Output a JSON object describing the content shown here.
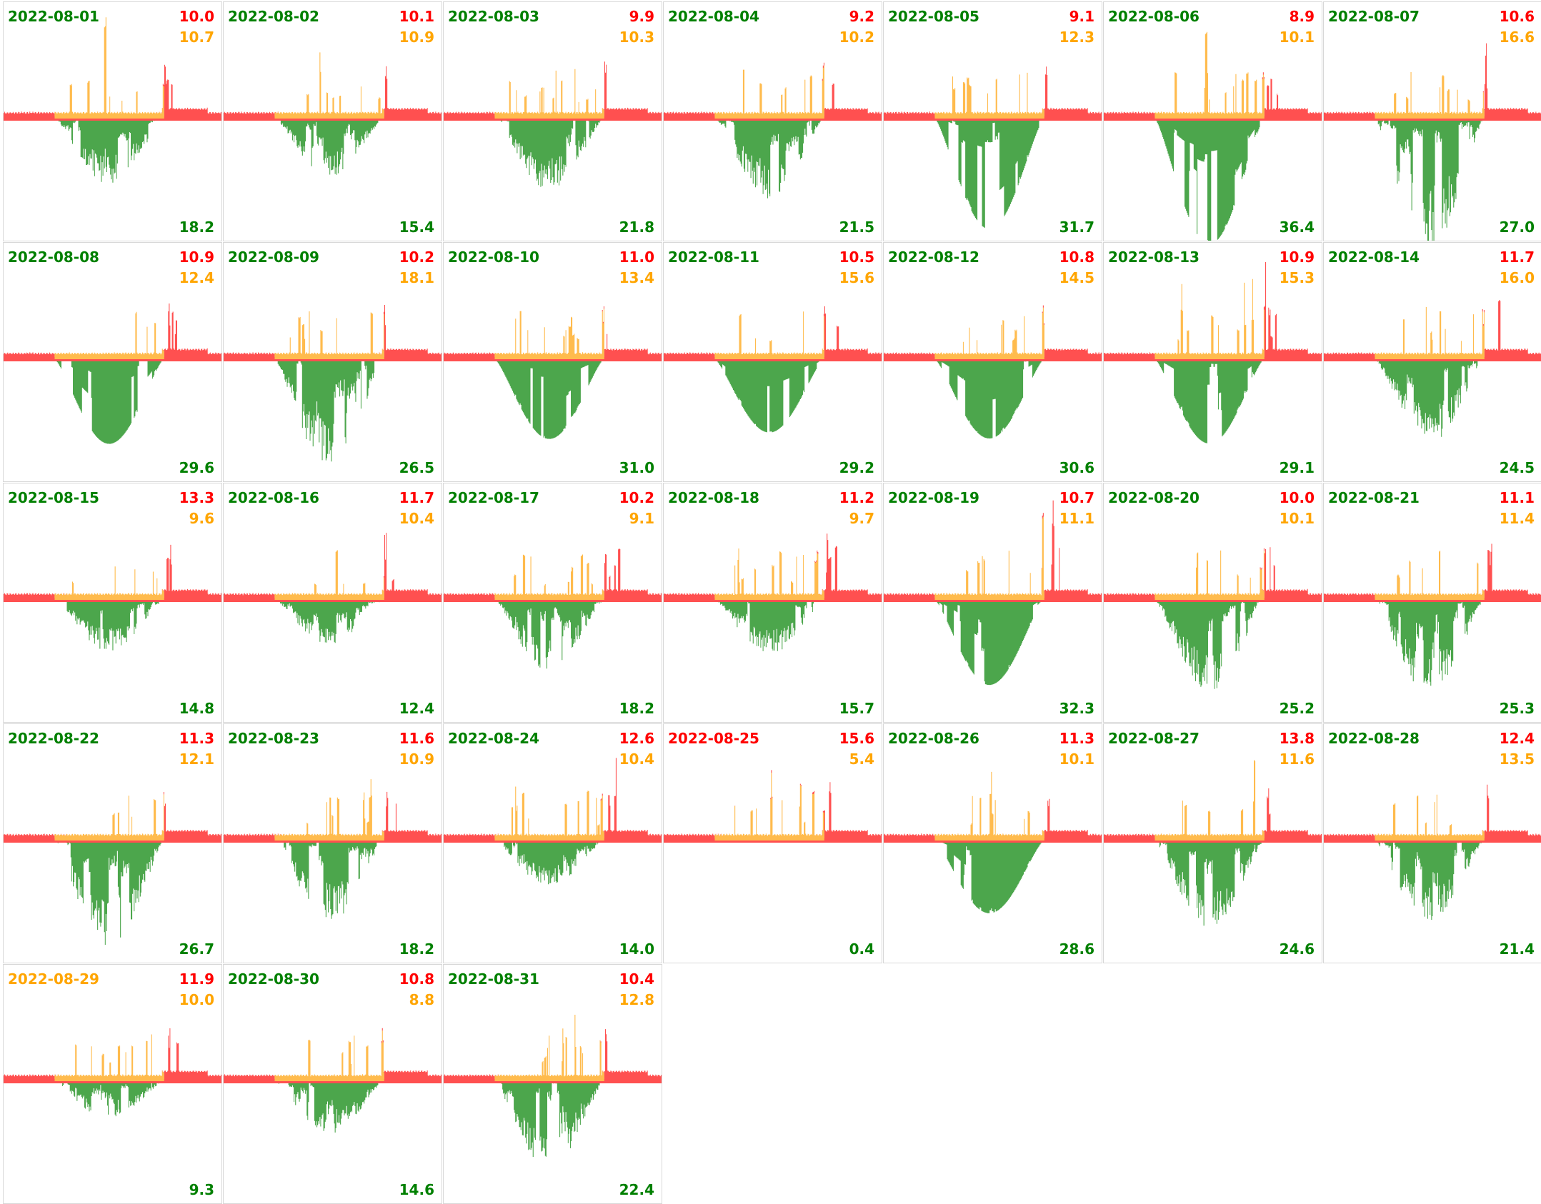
{
  "colors": {
    "import": "#ff5050",
    "self": "#ffbb4d",
    "export": "#4ca64c",
    "good": "#008000",
    "warn": "#ffa500",
    "bad": "#ff0000"
  },
  "chart_data": [
    {
      "type": "area",
      "date": "2022-08-01",
      "import_kwh": "10.0",
      "self_kwh": "10.7",
      "export_kwh": "18.2",
      "date_color": "good"
    },
    {
      "type": "area",
      "date": "2022-08-02",
      "import_kwh": "10.1",
      "self_kwh": "10.9",
      "export_kwh": "15.4",
      "date_color": "good"
    },
    {
      "type": "area",
      "date": "2022-08-03",
      "import_kwh": "9.9",
      "self_kwh": "10.3",
      "export_kwh": "21.8",
      "date_color": "good"
    },
    {
      "type": "area",
      "date": "2022-08-04",
      "import_kwh": "9.2",
      "self_kwh": "10.2",
      "export_kwh": "21.5",
      "date_color": "good"
    },
    {
      "type": "area",
      "date": "2022-08-05",
      "import_kwh": "9.1",
      "self_kwh": "12.3",
      "export_kwh": "31.7",
      "date_color": "good"
    },
    {
      "type": "area",
      "date": "2022-08-06",
      "import_kwh": "8.9",
      "self_kwh": "10.1",
      "export_kwh": "36.4",
      "date_color": "good"
    },
    {
      "type": "area",
      "date": "2022-08-07",
      "import_kwh": "10.6",
      "self_kwh": "16.6",
      "export_kwh": "27.0",
      "date_color": "good"
    },
    {
      "type": "area",
      "date": "2022-08-08",
      "import_kwh": "10.9",
      "self_kwh": "12.4",
      "export_kwh": "29.6",
      "date_color": "good"
    },
    {
      "type": "area",
      "date": "2022-08-09",
      "import_kwh": "10.2",
      "self_kwh": "18.1",
      "export_kwh": "26.5",
      "date_color": "good"
    },
    {
      "type": "area",
      "date": "2022-08-10",
      "import_kwh": "11.0",
      "self_kwh": "13.4",
      "export_kwh": "31.0",
      "date_color": "good"
    },
    {
      "type": "area",
      "date": "2022-08-11",
      "import_kwh": "10.5",
      "self_kwh": "15.6",
      "export_kwh": "29.2",
      "date_color": "good"
    },
    {
      "type": "area",
      "date": "2022-08-12",
      "import_kwh": "10.8",
      "self_kwh": "14.5",
      "export_kwh": "30.6",
      "date_color": "good"
    },
    {
      "type": "area",
      "date": "2022-08-13",
      "import_kwh": "10.9",
      "self_kwh": "15.3",
      "export_kwh": "29.1",
      "date_color": "good"
    },
    {
      "type": "area",
      "date": "2022-08-14",
      "import_kwh": "11.7",
      "self_kwh": "16.0",
      "export_kwh": "24.5",
      "date_color": "good"
    },
    {
      "type": "area",
      "date": "2022-08-15",
      "import_kwh": "13.3",
      "self_kwh": "9.6",
      "export_kwh": "14.8",
      "date_color": "good"
    },
    {
      "type": "area",
      "date": "2022-08-16",
      "import_kwh": "11.7",
      "self_kwh": "10.4",
      "export_kwh": "12.4",
      "date_color": "good"
    },
    {
      "type": "area",
      "date": "2022-08-17",
      "import_kwh": "10.2",
      "self_kwh": "9.1",
      "export_kwh": "18.2",
      "date_color": "good"
    },
    {
      "type": "area",
      "date": "2022-08-18",
      "import_kwh": "11.2",
      "self_kwh": "9.7",
      "export_kwh": "15.7",
      "date_color": "good"
    },
    {
      "type": "area",
      "date": "2022-08-19",
      "import_kwh": "10.7",
      "self_kwh": "11.1",
      "export_kwh": "32.3",
      "date_color": "good"
    },
    {
      "type": "area",
      "date": "2022-08-20",
      "import_kwh": "10.0",
      "self_kwh": "10.1",
      "export_kwh": "25.2",
      "date_color": "good"
    },
    {
      "type": "area",
      "date": "2022-08-21",
      "import_kwh": "11.1",
      "self_kwh": "11.4",
      "export_kwh": "25.3",
      "date_color": "good"
    },
    {
      "type": "area",
      "date": "2022-08-22",
      "import_kwh": "11.3",
      "self_kwh": "12.1",
      "export_kwh": "26.7",
      "date_color": "good"
    },
    {
      "type": "area",
      "date": "2022-08-23",
      "import_kwh": "11.6",
      "self_kwh": "10.9",
      "export_kwh": "18.2",
      "date_color": "good"
    },
    {
      "type": "area",
      "date": "2022-08-24",
      "import_kwh": "12.6",
      "self_kwh": "10.4",
      "export_kwh": "14.0",
      "date_color": "good"
    },
    {
      "type": "area",
      "date": "2022-08-25",
      "import_kwh": "15.6",
      "self_kwh": "5.4",
      "export_kwh": "0.4",
      "date_color": "bad"
    },
    {
      "type": "area",
      "date": "2022-08-26",
      "import_kwh": "11.3",
      "self_kwh": "10.1",
      "export_kwh": "28.6",
      "date_color": "good"
    },
    {
      "type": "area",
      "date": "2022-08-27",
      "import_kwh": "13.8",
      "self_kwh": "11.6",
      "export_kwh": "24.6",
      "date_color": "good"
    },
    {
      "type": "area",
      "date": "2022-08-28",
      "import_kwh": "12.4",
      "self_kwh": "13.5",
      "export_kwh": "21.4",
      "date_color": "good"
    },
    {
      "type": "area",
      "date": "2022-08-29",
      "import_kwh": "11.9",
      "self_kwh": "10.0",
      "export_kwh": "9.3",
      "date_color": "warn"
    },
    {
      "type": "area",
      "date": "2022-08-30",
      "import_kwh": "10.8",
      "self_kwh": "8.8",
      "export_kwh": "14.6",
      "date_color": "good"
    },
    {
      "type": "area",
      "date": "2022-08-31",
      "import_kwh": "10.4",
      "self_kwh": "12.8",
      "export_kwh": "22.4",
      "date_color": "good"
    }
  ]
}
